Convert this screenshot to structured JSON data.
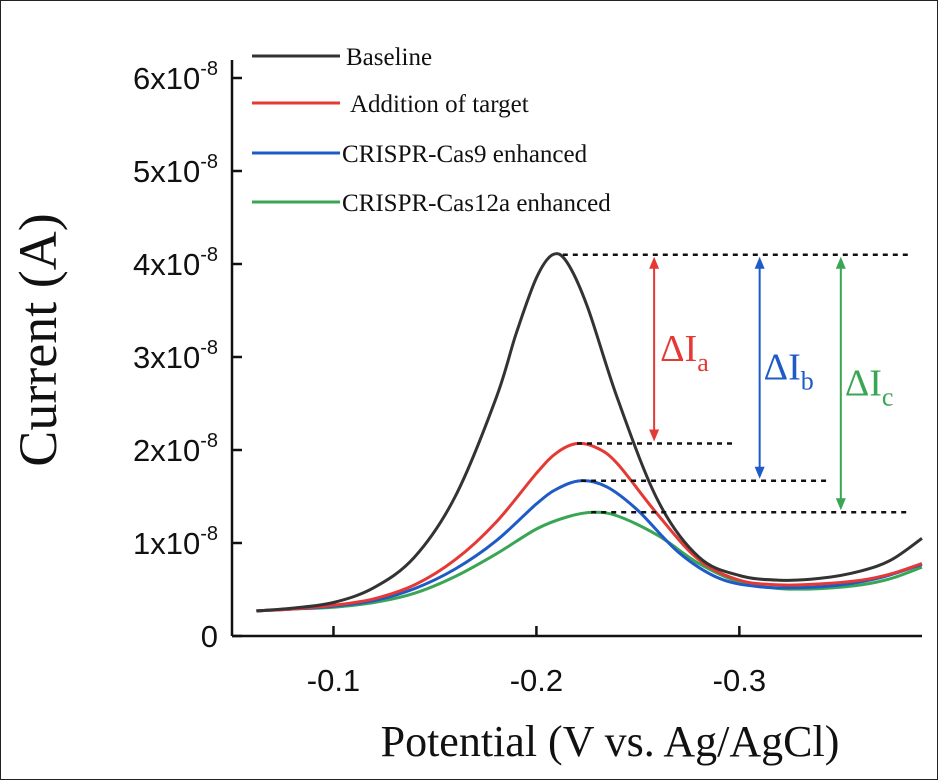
{
  "chart_data": {
    "type": "line",
    "xlabel": "Potential (V vs. Ag/AgCl)",
    "ylabel": "Current (A)",
    "x_reversed": true,
    "xlim": [
      -0.05,
      -0.39
    ],
    "ylim": [
      0,
      6e-08
    ],
    "x_ticks": [
      {
        "value": -0.1,
        "label": "-0.1"
      },
      {
        "value": -0.2,
        "label": "-0.2"
      },
      {
        "value": -0.3,
        "label": "-0.3"
      }
    ],
    "y_ticks": [
      {
        "value": 0,
        "base": "0",
        "exp": ""
      },
      {
        "value": 1e-08,
        "base": "1x10",
        "exp": "-8"
      },
      {
        "value": 2e-08,
        "base": "2x10",
        "exp": "-8"
      },
      {
        "value": 3e-08,
        "base": "3x10",
        "exp": "-8"
      },
      {
        "value": 4e-08,
        "base": "4x10",
        "exp": "-8"
      },
      {
        "value": 5e-08,
        "base": "5x10",
        "exp": "-8"
      },
      {
        "value": 6e-08,
        "base": "6x10",
        "exp": "-8"
      }
    ],
    "legend_position": "top-left",
    "series": [
      {
        "name": "Baseline",
        "color": "#333333",
        "peak_x": -0.208,
        "peak_y": 4.1e-08,
        "x": [
          -0.062,
          -0.08,
          -0.1,
          -0.12,
          -0.14,
          -0.16,
          -0.18,
          -0.19,
          -0.2,
          -0.208,
          -0.215,
          -0.225,
          -0.24,
          -0.26,
          -0.28,
          -0.3,
          -0.32,
          -0.34,
          -0.36,
          -0.375,
          -0.39
        ],
        "y": [
          2.7e-09,
          3e-09,
          3.6e-09,
          5.2e-09,
          8.5e-09,
          1.5e-08,
          2.55e-08,
          3.25e-08,
          3.85e-08,
          4.1e-08,
          4.02e-08,
          3.55e-08,
          2.55e-08,
          1.45e-08,
          8.5e-09,
          6.5e-09,
          6e-09,
          6.2e-09,
          7e-09,
          8.2e-09,
          1.05e-08
        ]
      },
      {
        "name": "Addition of target",
        "color": "#e53935",
        "peak_x": -0.22,
        "peak_y": 2.07e-08,
        "x": [
          -0.062,
          -0.08,
          -0.1,
          -0.12,
          -0.14,
          -0.16,
          -0.18,
          -0.2,
          -0.21,
          -0.22,
          -0.23,
          -0.24,
          -0.26,
          -0.28,
          -0.3,
          -0.32,
          -0.34,
          -0.36,
          -0.375,
          -0.39
        ],
        "y": [
          2.7e-09,
          2.9e-09,
          3.3e-09,
          4e-09,
          5.5e-09,
          8.2e-09,
          1.22e-08,
          1.75e-08,
          1.97e-08,
          2.07e-08,
          2.02e-08,
          1.85e-08,
          1.3e-08,
          8.2e-09,
          6e-09,
          5.5e-09,
          5.6e-09,
          6e-09,
          6.7e-09,
          7.8e-09
        ]
      },
      {
        "name": "CRISPR-Cas9 enhanced",
        "color": "#1e5bc6",
        "peak_x": -0.222,
        "peak_y": 1.67e-08,
        "x": [
          -0.062,
          -0.08,
          -0.1,
          -0.12,
          -0.14,
          -0.16,
          -0.18,
          -0.2,
          -0.21,
          -0.222,
          -0.235,
          -0.25,
          -0.27,
          -0.29,
          -0.31,
          -0.33,
          -0.35,
          -0.37,
          -0.39
        ],
        "y": [
          2.7e-09,
          2.9e-09,
          3.2e-09,
          3.8e-09,
          5.1e-09,
          7.2e-09,
          1.02e-08,
          1.42e-08,
          1.58e-08,
          1.67e-08,
          1.6e-08,
          1.35e-08,
          9e-09,
          6.2e-09,
          5.3e-09,
          5.2e-09,
          5.5e-09,
          6.3e-09,
          7.7e-09
        ]
      },
      {
        "name": "CRISPR-Cas12a enhanced",
        "color": "#3aa655",
        "peak_x": -0.228,
        "peak_y": 1.33e-08,
        "x": [
          -0.062,
          -0.08,
          -0.1,
          -0.12,
          -0.14,
          -0.16,
          -0.18,
          -0.2,
          -0.215,
          -0.228,
          -0.24,
          -0.26,
          -0.28,
          -0.3,
          -0.32,
          -0.34,
          -0.36,
          -0.375,
          -0.39
        ],
        "y": [
          2.7e-09,
          2.9e-09,
          3.1e-09,
          3.6e-09,
          4.6e-09,
          6.4e-09,
          8.8e-09,
          1.15e-08,
          1.28e-08,
          1.33e-08,
          1.29e-08,
          1.08e-08,
          7.8e-09,
          5.8e-09,
          5.1e-09,
          5.1e-09,
          5.5e-09,
          6.2e-09,
          7.4e-09
        ]
      }
    ],
    "reference_lines": [
      {
        "y": 4.1e-08,
        "x_start": -0.213,
        "x_end": -0.383
      },
      {
        "y": 2.07e-08,
        "x_start": -0.22,
        "x_end": -0.298
      },
      {
        "y": 1.67e-08,
        "x_start": -0.222,
        "x_end": -0.343
      },
      {
        "y": 1.33e-08,
        "x_start": -0.227,
        "x_end": -0.383
      }
    ],
    "annotations": [
      {
        "base": "ΔI",
        "sub": "a",
        "color": "#e53935",
        "x": -0.258,
        "y_top": 4.1e-08,
        "y_bottom": 2.07e-08
      },
      {
        "base": "ΔI",
        "sub": "b",
        "color": "#1e5bc6",
        "x": -0.31,
        "y_top": 4.1e-08,
        "y_bottom": 1.67e-08
      },
      {
        "base": "ΔI",
        "sub": "c",
        "color": "#3aa655",
        "x": -0.35,
        "y_top": 4.1e-08,
        "y_bottom": 1.33e-08
      }
    ]
  }
}
